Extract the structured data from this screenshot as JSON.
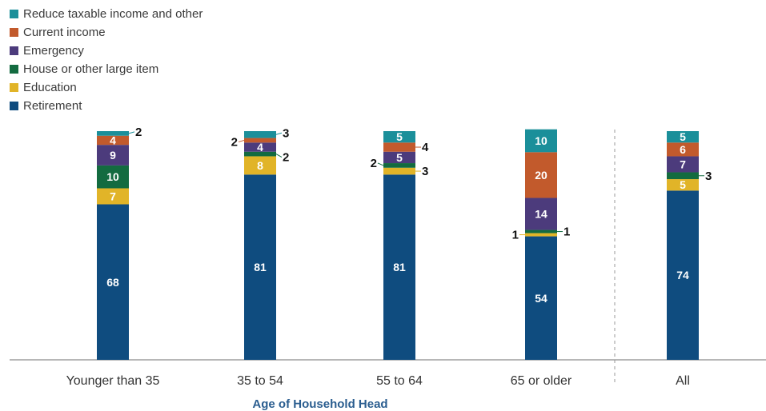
{
  "chart_data": {
    "type": "bar",
    "stacked": true,
    "xlabel": "Age of Household Head",
    "ylabel": "",
    "ylim": [
      0,
      100
    ],
    "grid": false,
    "legend_position": "top-left",
    "categories": [
      "Younger than 35",
      "35 to 54",
      "55 to 64",
      "65 or older",
      "All"
    ],
    "series": [
      {
        "name": "Retirement",
        "color": "#0f4c7f",
        "values": [
          68,
          81,
          81,
          54,
          74
        ]
      },
      {
        "name": "Education",
        "color": "#e1b428",
        "values": [
          7,
          8,
          3,
          1,
          5
        ]
      },
      {
        "name": "House or other large item",
        "color": "#136b40",
        "values": [
          10,
          2,
          2,
          1,
          3
        ]
      },
      {
        "name": "Emergency",
        "color": "#4c3b7c",
        "values": [
          9,
          4,
          5,
          14,
          7
        ]
      },
      {
        "name": "Current income",
        "color": "#c25a2c",
        "values": [
          4,
          2,
          4,
          20,
          6
        ]
      },
      {
        "name": "Reduce taxable income and other",
        "color": "#1b8f9a",
        "values": [
          2,
          3,
          5,
          10,
          5
        ]
      }
    ],
    "legend_order": [
      "Reduce taxable income and other",
      "Current income",
      "Emergency",
      "House or other large item",
      "Education",
      "Retirement"
    ]
  }
}
